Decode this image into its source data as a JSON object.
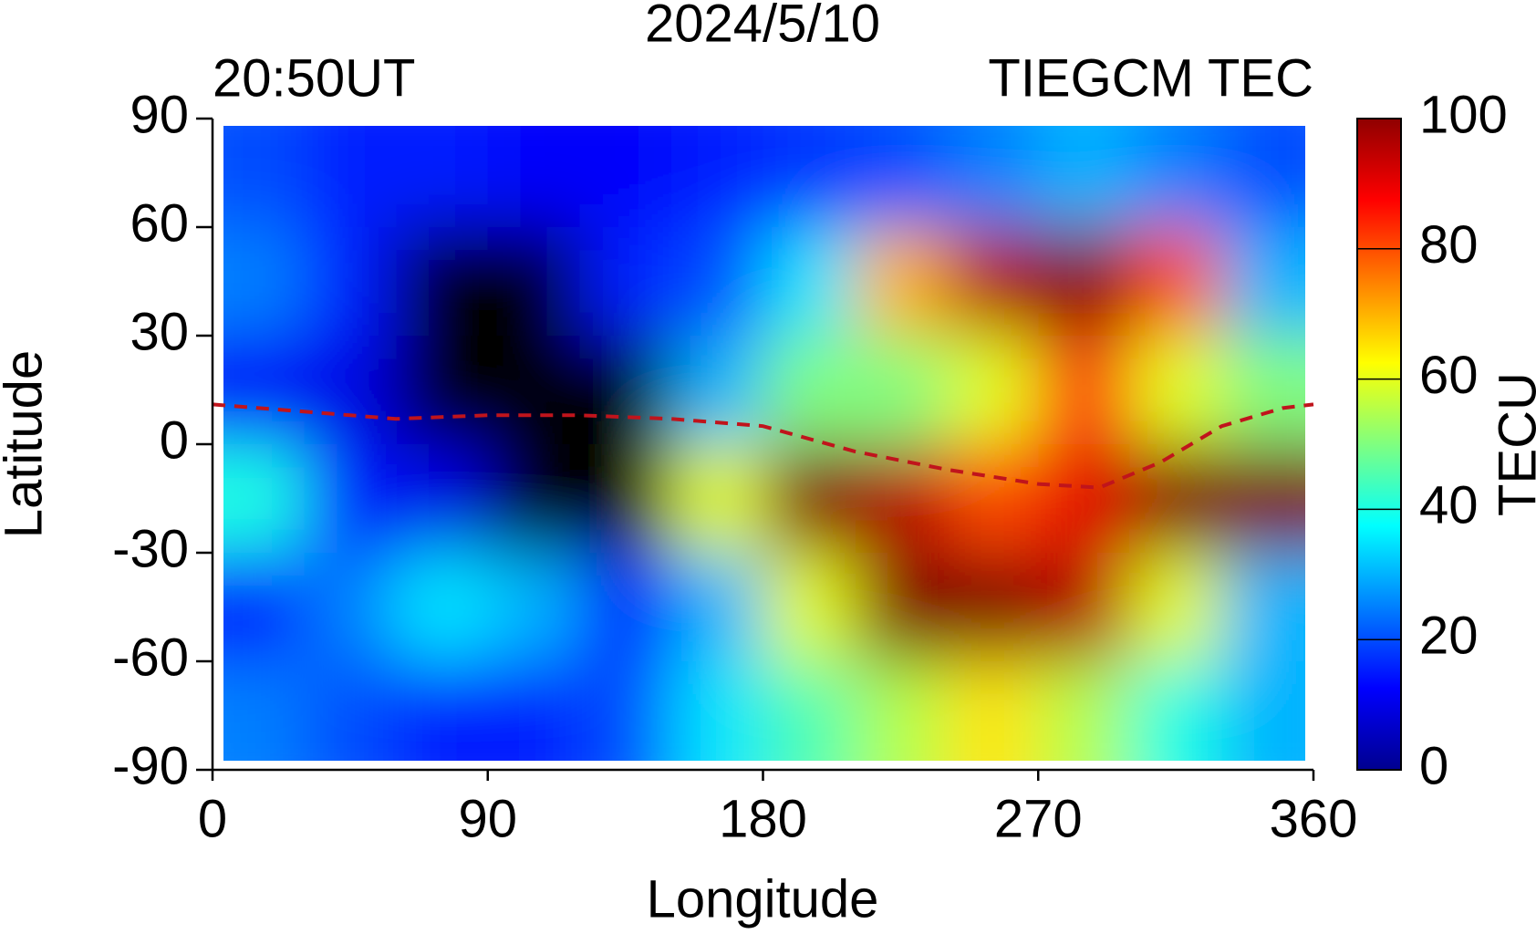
{
  "chart_data": {
    "type": "heatmap",
    "title": "2024/5/10",
    "subtitle_left": "20:50UT",
    "subtitle_right": "TIEGCM TEC",
    "x_label": "Longitude",
    "y_label": "Latitude",
    "x": [
      15,
      45,
      75,
      105,
      135,
      165,
      195,
      225,
      255,
      285,
      315,
      345
    ],
    "y": [
      75,
      45,
      15,
      -15,
      -45,
      -75
    ],
    "z": [
      [
        20,
        15,
        15,
        12,
        12,
        15,
        18,
        20,
        25,
        30,
        25,
        20
      ],
      [
        25,
        15,
        null,
        null,
        15,
        20,
        35,
        70,
        95,
        100,
        80,
        30
      ],
      [
        12,
        10,
        null,
        null,
        null,
        30,
        50,
        50,
        60,
        85,
        60,
        50
      ],
      [
        40,
        15,
        10,
        null,
        null,
        60,
        100,
        95,
        80,
        90,
        100,
        100
      ],
      [
        15,
        25,
        35,
        30,
        15,
        30,
        60,
        100,
        100,
        95,
        60,
        30
      ],
      [
        25,
        20,
        15,
        15,
        20,
        35,
        45,
        55,
        65,
        55,
        40,
        30
      ]
    ],
    "colormap": "jet",
    "xlim": [
      0,
      360
    ],
    "xticks": [
      0,
      90,
      180,
      270,
      360
    ],
    "ylim": [
      -90,
      90
    ],
    "yticks": [
      -90,
      -60,
      -30,
      0,
      30,
      60,
      90
    ],
    "colorbar": {
      "label": "TECU",
      "lim": [
        0,
        100
      ],
      "ticks": [
        0,
        20,
        40,
        60,
        80,
        100
      ]
    },
    "equator_line": {
      "color": "#c0141c",
      "x": [
        0,
        30,
        60,
        90,
        120,
        150,
        180,
        210,
        240,
        270,
        290,
        310,
        330,
        350,
        360
      ],
      "y": [
        11,
        9,
        7,
        8,
        8,
        7,
        5,
        -2,
        -7,
        -11,
        -12,
        -5,
        5,
        10,
        11
      ]
    }
  }
}
